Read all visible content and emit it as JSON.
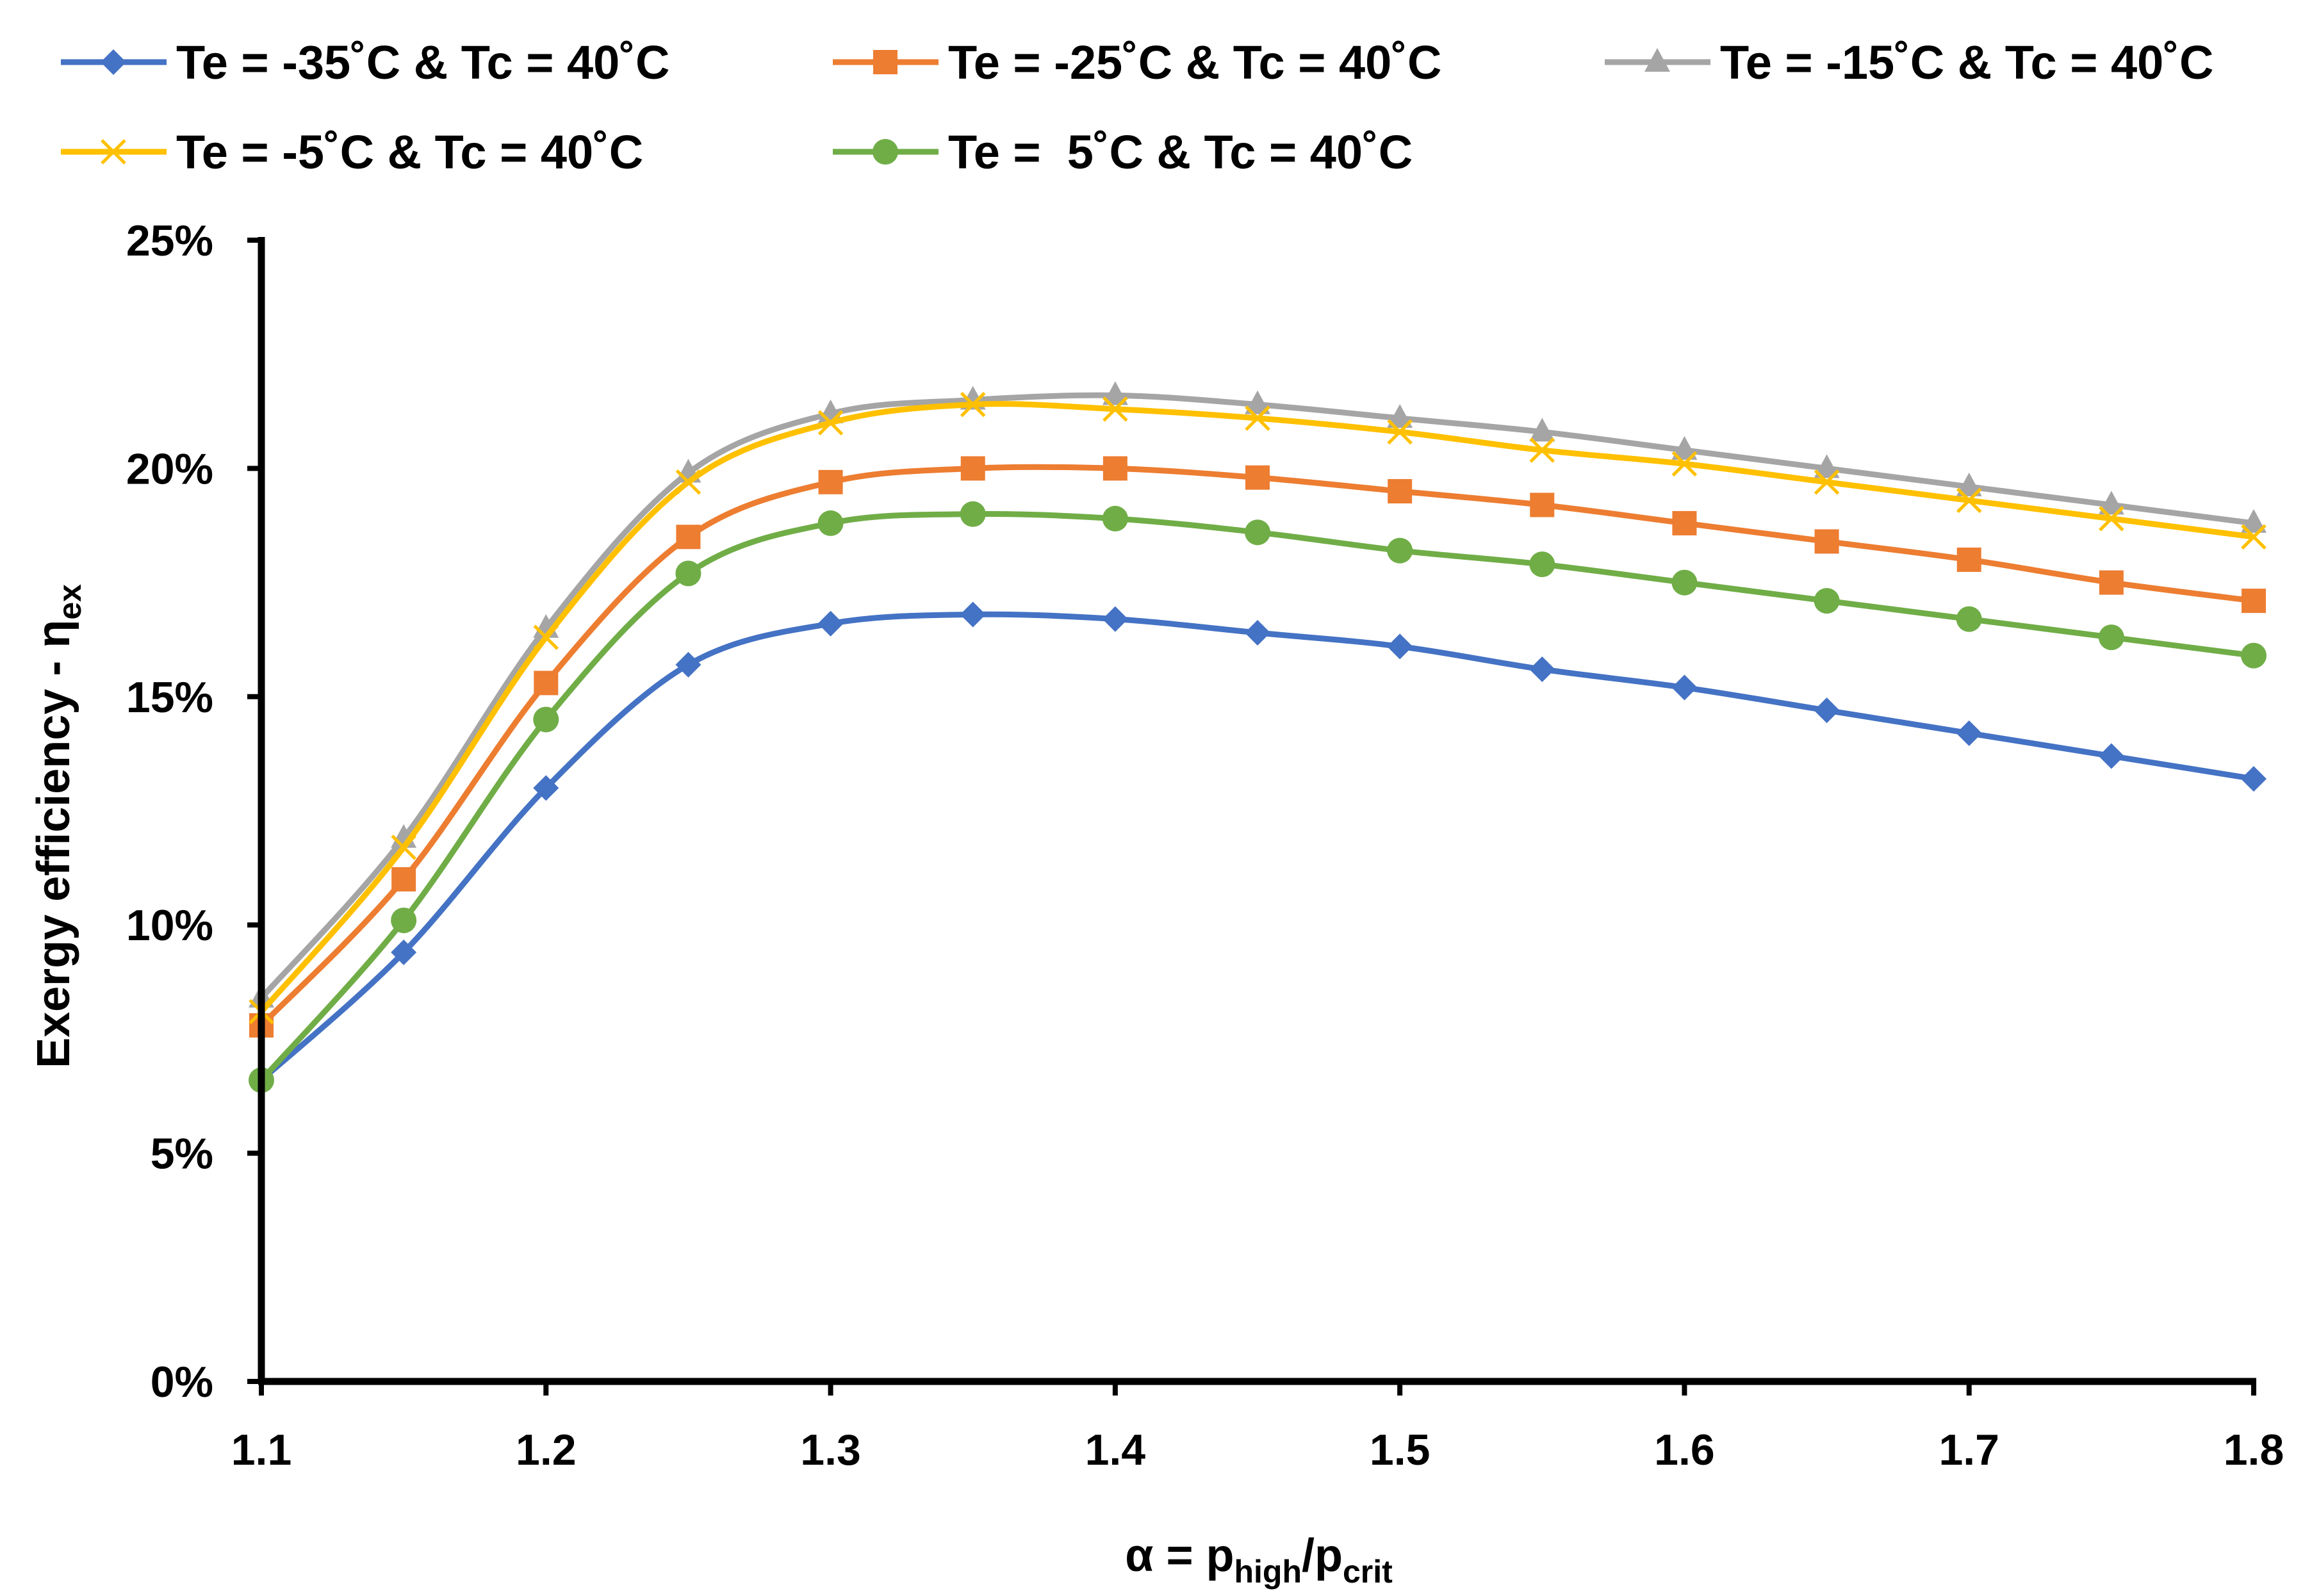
{
  "chart_data": {
    "type": "line",
    "title": "",
    "xlabel": {
      "prefix": "α = p",
      "sub1": "high",
      "mid": "/p",
      "sub2": "crit"
    },
    "ylabel": {
      "main": "Exergy efficiency - η",
      "sub": "ex"
    },
    "xlim": [
      1.1,
      1.8
    ],
    "ylim": [
      0,
      25
    ],
    "x_ticks": [
      "1.1",
      "1.2",
      "1.3",
      "1.4",
      "1.5",
      "1.6",
      "1.7",
      "1.8"
    ],
    "x_tick_values": [
      1.1,
      1.2,
      1.3,
      1.4,
      1.5,
      1.6,
      1.7,
      1.8
    ],
    "y_ticks": [
      "0%",
      "5%",
      "10%",
      "15%",
      "20%",
      "25%"
    ],
    "y_tick_values": [
      0,
      5,
      10,
      15,
      20,
      25
    ],
    "grid": false,
    "legend_position": "top",
    "x": [
      1.1,
      1.15,
      1.2,
      1.25,
      1.3,
      1.35,
      1.4,
      1.45,
      1.5,
      1.55,
      1.6,
      1.65,
      1.7,
      1.75,
      1.8
    ],
    "series": [
      {
        "name": "Te = -35˚C & Tc = 40˚C",
        "color": "#4472C4",
        "marker": "diamond",
        "values": [
          6.6,
          9.4,
          13.0,
          15.7,
          16.6,
          16.8,
          16.7,
          16.4,
          16.1,
          15.6,
          15.2,
          14.7,
          14.2,
          13.7,
          13.2
        ]
      },
      {
        "name": "Te = -25˚C & Tc = 40˚C",
        "color": "#ED7D31",
        "marker": "square",
        "values": [
          7.8,
          11.0,
          15.3,
          18.5,
          19.7,
          20.0,
          20.0,
          19.8,
          19.5,
          19.2,
          18.8,
          18.4,
          18.0,
          17.5,
          17.1
        ]
      },
      {
        "name": "Te = -15˚C & Tc = 40˚C",
        "color": "#A5A5A5",
        "marker": "triangle",
        "values": [
          8.4,
          11.9,
          16.5,
          19.9,
          21.2,
          21.5,
          21.6,
          21.4,
          21.1,
          20.8,
          20.4,
          20.0,
          19.6,
          19.2,
          18.8
        ]
      },
      {
        "name": "Te = -5˚C & Tc = 40˚C",
        "color": "#FFC000",
        "marker": "x",
        "values": [
          8.1,
          11.7,
          16.3,
          19.7,
          21.0,
          21.4,
          21.3,
          21.1,
          20.8,
          20.4,
          20.1,
          19.7,
          19.3,
          18.9,
          18.5
        ]
      },
      {
        "name": "Te =  5˚C & Tc = 40˚C",
        "color": "#70AD47",
        "marker": "circle",
        "values": [
          6.6,
          10.1,
          14.5,
          17.7,
          18.8,
          19.0,
          18.9,
          18.6,
          18.2,
          17.9,
          17.5,
          17.1,
          16.7,
          16.3,
          15.9
        ]
      }
    ]
  }
}
